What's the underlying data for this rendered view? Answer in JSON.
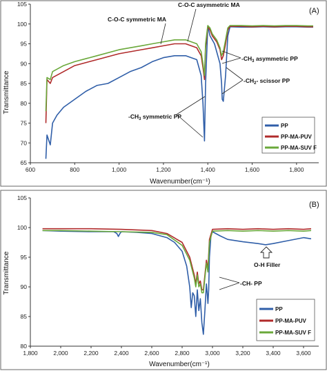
{
  "chart_data": [
    {
      "type": "line",
      "panel_label": "(A)",
      "xlabel": "Wavenumber(cm⁻¹)",
      "ylabel": "Transmittance",
      "xlim": [
        600,
        1900
      ],
      "ylim": [
        65,
        105
      ],
      "xticks": [
        600,
        800,
        1000,
        1200,
        1400,
        1600,
        1800
      ],
      "xtick_labels": [
        "600",
        "800",
        "1,000",
        "1,200",
        "1,400",
        "1,600",
        "1,800"
      ],
      "yticks": [
        65,
        70,
        75,
        80,
        85,
        90,
        95,
        100,
        105
      ],
      "ytick_labels": [
        "65",
        "70",
        "75",
        "80",
        "85",
        "90",
        "95",
        "100",
        "105"
      ],
      "grid": false,
      "legend_position": "bottom-right",
      "series": [
        {
          "name": "PP",
          "color": "#2f5ea8",
          "x": [
            670,
            675,
            690,
            700,
            720,
            750,
            800,
            850,
            900,
            950,
            1000,
            1050,
            1100,
            1150,
            1200,
            1250,
            1300,
            1350,
            1370,
            1378,
            1385,
            1390,
            1400,
            1410,
            1420,
            1430,
            1440,
            1455,
            1462,
            1465,
            1470,
            1480,
            1490,
            1500,
            1550,
            1600,
            1650,
            1700,
            1750,
            1800,
            1850,
            1875
          ],
          "y": [
            66,
            72,
            69.5,
            75,
            77,
            79,
            81,
            83,
            84.5,
            85,
            86.5,
            88,
            89,
            90.5,
            91.5,
            92,
            92,
            91,
            87,
            80,
            70.5,
            85,
            99.5,
            97,
            96,
            95,
            93,
            90,
            85,
            81,
            80.5,
            87,
            97,
            99.3,
            99.2,
            99.2,
            99.3,
            99.2,
            99.3,
            99.3,
            99.2,
            99.2
          ]
        },
        {
          "name": "PP-MA-PUV",
          "color": "#b02a2a",
          "x": [
            670,
            675,
            690,
            700,
            750,
            800,
            900,
            1000,
            1100,
            1150,
            1200,
            1250,
            1300,
            1350,
            1370,
            1378,
            1385,
            1390,
            1400,
            1410,
            1420,
            1440,
            1455,
            1462,
            1470,
            1480,
            1490,
            1500,
            1550,
            1600,
            1650,
            1700,
            1750,
            1800,
            1850,
            1875
          ],
          "y": [
            75,
            86,
            85,
            86.5,
            88,
            89.5,
            91,
            92.5,
            93.5,
            94,
            94.5,
            95,
            95,
            94,
            92,
            89,
            86,
            94,
            99.3,
            98.5,
            97,
            95.5,
            93.5,
            91,
            92,
            95,
            98.5,
            99.4,
            99.4,
            99.3,
            99.4,
            99.3,
            99.4,
            99.4,
            99.3,
            99.3
          ]
        },
        {
          "name": "PP-MA-SUV F",
          "color": "#6aa83a",
          "x": [
            670,
            675,
            690,
            700,
            750,
            800,
            900,
            1000,
            1100,
            1150,
            1200,
            1250,
            1300,
            1350,
            1370,
            1378,
            1385,
            1390,
            1400,
            1410,
            1420,
            1440,
            1455,
            1462,
            1470,
            1480,
            1490,
            1500,
            1550,
            1600,
            1650,
            1700,
            1750,
            1800,
            1850,
            1875
          ],
          "y": [
            78,
            86.5,
            86,
            88,
            89.5,
            90.5,
            92,
            93.5,
            94.5,
            95,
            95.5,
            96,
            96,
            95,
            93,
            90,
            87,
            95,
            99.6,
            99,
            97.5,
            96,
            94,
            92,
            93,
            96,
            99,
            99.6,
            99.6,
            99.5,
            99.6,
            99.5,
            99.6,
            99.6,
            99.5,
            99.5
          ]
        }
      ],
      "annotations": [
        "C-O-C asymmetric MA",
        "C-O-C symmetric MA",
        "-CH₃ asymmetric PP",
        "-CH₂- scissor PP",
        "-CH₃ symmetric PP"
      ]
    },
    {
      "type": "line",
      "panel_label": "(B)",
      "xlabel": "Wavenumber(cm⁻¹)",
      "ylabel": "Transmittance",
      "xlim": [
        1800,
        3700
      ],
      "ylim": [
        80,
        105
      ],
      "xticks": [
        1800,
        2000,
        2200,
        2400,
        2600,
        2800,
        3000,
        3200,
        3400,
        3600
      ],
      "xtick_labels": [
        "1,800",
        "2,000",
        "2,200",
        "2,400",
        "2,600",
        "2,800",
        "3,000",
        "3,200",
        "3,400",
        "3,600"
      ],
      "yticks": [
        80,
        85,
        90,
        95,
        100,
        105
      ],
      "ytick_labels": [
        "80",
        "85",
        "90",
        "95",
        "100",
        "105"
      ],
      "grid": false,
      "legend_position": "bottom-left",
      "series": [
        {
          "name": "PP",
          "color": "#2f5ea8",
          "x": [
            1880,
            2000,
            2200,
            2350,
            2370,
            2380,
            2390,
            2400,
            2500,
            2600,
            2700,
            2750,
            2800,
            2830,
            2850,
            2860,
            2870,
            2880,
            2890,
            2900,
            2910,
            2920,
            2930,
            2940,
            2950,
            2960,
            2965,
            2970,
            2975,
            2980,
            2990,
            3000,
            3050,
            3100,
            3200,
            3300,
            3350,
            3400,
            3500,
            3600,
            3650
          ],
          "y": [
            99.5,
            99.4,
            99.3,
            99.3,
            99,
            98.5,
            99,
            99.3,
            99.2,
            99,
            98.3,
            97.5,
            96,
            93.5,
            90,
            86.5,
            89,
            88.5,
            85,
            89.5,
            86,
            88,
            84,
            82,
            86,
            90.5,
            89,
            87.2,
            89.5,
            95,
            98.7,
            99.3,
            98.6,
            98,
            97.6,
            97.3,
            97.1,
            97.3,
            97.8,
            98.3,
            98.1
          ]
        },
        {
          "name": "PP-MA-PUV",
          "color": "#b02a2a",
          "x": [
            1880,
            2000,
            2200,
            2400,
            2600,
            2700,
            2800,
            2850,
            2870,
            2880,
            2890,
            2900,
            2910,
            2920,
            2930,
            2940,
            2950,
            2960,
            2970,
            2980,
            3000,
            3100,
            3200,
            3300,
            3400,
            3500,
            3600,
            3650
          ],
          "y": [
            99.8,
            99.8,
            99.8,
            99.7,
            99.5,
            99,
            97.5,
            95,
            93,
            92,
            90.5,
            92.5,
            90.5,
            91,
            89.5,
            89.5,
            92,
            94.5,
            93,
            98,
            99.7,
            99.8,
            99.7,
            99.8,
            99.7,
            99.8,
            99.7,
            99.8
          ]
        },
        {
          "name": "PP-MA-SUV F",
          "color": "#6aa83a",
          "x": [
            1880,
            2000,
            2200,
            2400,
            2600,
            2700,
            2800,
            2850,
            2870,
            2880,
            2890,
            2900,
            2910,
            2920,
            2930,
            2940,
            2950,
            2960,
            2970,
            2980,
            3000,
            3100,
            3200,
            3300,
            3400,
            3500,
            3600,
            3650
          ],
          "y": [
            99.5,
            99.5,
            99.4,
            99.3,
            99.2,
            98.8,
            97,
            94.5,
            92.5,
            91.5,
            90,
            92,
            90,
            90.5,
            89,
            89,
            91.5,
            94,
            92.5,
            97.5,
            99.4,
            99.5,
            99.4,
            99.5,
            99.4,
            99.5,
            99.4,
            99.5
          ]
        }
      ],
      "annotations": [
        "O-H Filler",
        "-CH- PP"
      ]
    }
  ]
}
